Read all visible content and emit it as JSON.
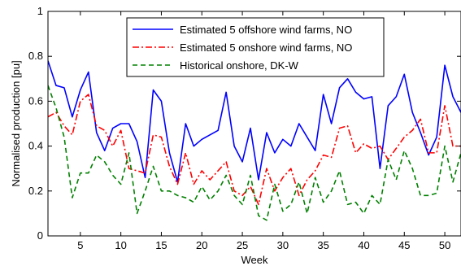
{
  "chart_data": {
    "type": "line",
    "xlabel": "Week",
    "ylabel": "Normalised production [pu]",
    "xlim": [
      1,
      52
    ],
    "ylim": [
      0,
      1
    ],
    "xticks": [
      5,
      10,
      15,
      20,
      25,
      30,
      35,
      40,
      45,
      50
    ],
    "yticks": [
      0,
      0.2,
      0.4,
      0.6,
      0.8,
      1
    ],
    "ytick_labels": [
      "0",
      "0.2",
      "0.4",
      "0.6",
      "0.8",
      "1"
    ],
    "grid": false,
    "legend_position": "top-center",
    "x": [
      1,
      2,
      3,
      4,
      5,
      6,
      7,
      8,
      9,
      10,
      11,
      12,
      13,
      14,
      15,
      16,
      17,
      18,
      19,
      20,
      21,
      22,
      23,
      24,
      25,
      26,
      27,
      28,
      29,
      30,
      31,
      32,
      33,
      34,
      35,
      36,
      37,
      38,
      39,
      40,
      41,
      42,
      43,
      44,
      45,
      46,
      47,
      48,
      49,
      50,
      51,
      52
    ],
    "series": [
      {
        "name": "Estimated 5 offshore wind farms, NO",
        "color": "#0000ff",
        "dash": "solid",
        "values": [
          0.78,
          0.67,
          0.66,
          0.53,
          0.65,
          0.73,
          0.46,
          0.38,
          0.48,
          0.5,
          0.5,
          0.42,
          0.26,
          0.65,
          0.6,
          0.37,
          0.24,
          0.5,
          0.4,
          0.43,
          0.45,
          0.47,
          0.64,
          0.4,
          0.33,
          0.48,
          0.25,
          0.46,
          0.37,
          0.43,
          0.4,
          0.5,
          0.44,
          0.38,
          0.63,
          0.5,
          0.66,
          0.7,
          0.64,
          0.61,
          0.62,
          0.3,
          0.58,
          0.62,
          0.72,
          0.55,
          0.46,
          0.36,
          0.44,
          0.76,
          0.62,
          0.55
        ]
      },
      {
        "name": "Estimated 5 onshore wind farms, NO",
        "color": "#ff0000",
        "dash": "dashdot",
        "values": [
          0.53,
          0.55,
          0.49,
          0.45,
          0.6,
          0.63,
          0.49,
          0.47,
          0.4,
          0.47,
          0.3,
          0.29,
          0.28,
          0.45,
          0.44,
          0.31,
          0.23,
          0.37,
          0.23,
          0.29,
          0.25,
          0.29,
          0.33,
          0.2,
          0.18,
          0.22,
          0.14,
          0.3,
          0.2,
          0.26,
          0.3,
          0.18,
          0.25,
          0.29,
          0.36,
          0.35,
          0.48,
          0.49,
          0.37,
          0.41,
          0.39,
          0.4,
          0.34,
          0.39,
          0.44,
          0.47,
          0.52,
          0.37,
          0.37,
          0.58,
          0.4,
          0.4
        ]
      },
      {
        "name": "Historical onshore, DK-W",
        "color": "#008000",
        "dash": "dashed",
        "values": [
          0.67,
          0.57,
          0.44,
          0.17,
          0.28,
          0.28,
          0.36,
          0.33,
          0.27,
          0.23,
          0.37,
          0.1,
          0.2,
          0.31,
          0.2,
          0.2,
          0.18,
          0.17,
          0.15,
          0.22,
          0.16,
          0.2,
          0.27,
          0.18,
          0.14,
          0.27,
          0.09,
          0.07,
          0.23,
          0.11,
          0.14,
          0.24,
          0.1,
          0.26,
          0.15,
          0.2,
          0.29,
          0.14,
          0.15,
          0.1,
          0.18,
          0.14,
          0.34,
          0.25,
          0.38,
          0.3,
          0.18,
          0.18,
          0.19,
          0.4,
          0.24,
          0.37
        ]
      }
    ]
  }
}
